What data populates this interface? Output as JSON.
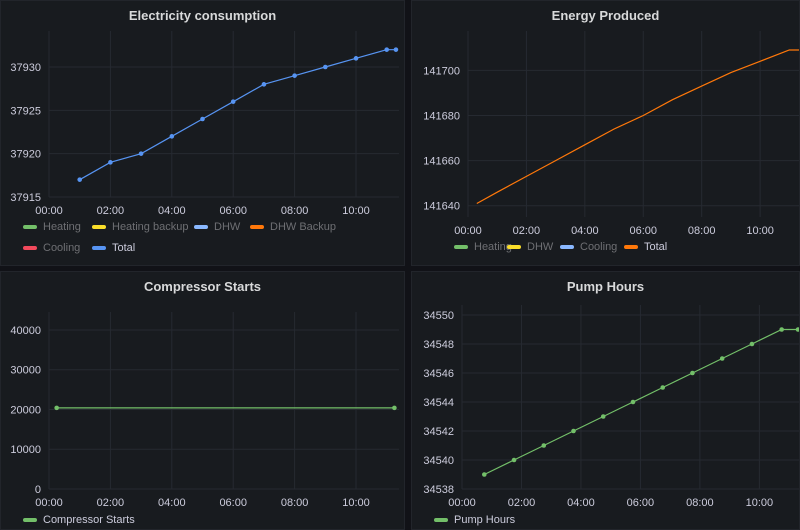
{
  "panels": [
    {
      "title": "Electricity consumption",
      "legend": [
        {
          "label": "Heating",
          "color": "#73bf69",
          "dim": true
        },
        {
          "label": "Heating backup",
          "color": "#fade2a",
          "dim": true
        },
        {
          "label": "DHW",
          "color": "#8ab8ff",
          "dim": true
        },
        {
          "label": "DHW Backup",
          "color": "#ff780a",
          "dim": true
        },
        {
          "label": "Cooling",
          "color": "#f2495c",
          "dim": true
        },
        {
          "label": "Total",
          "color": "#5794f2",
          "dim": false
        }
      ]
    },
    {
      "title": "Energy Produced",
      "legend": [
        {
          "label": "Heating",
          "color": "#73bf69",
          "dim": true
        },
        {
          "label": "DHW",
          "color": "#fade2a",
          "dim": true
        },
        {
          "label": "Cooling",
          "color": "#8ab8ff",
          "dim": true
        },
        {
          "label": "Total",
          "color": "#ff780a",
          "dim": false
        }
      ]
    },
    {
      "title": "Compressor Starts",
      "legend": [
        {
          "label": "Compressor Starts",
          "color": "#73bf69",
          "dim": false
        }
      ]
    },
    {
      "title": "Pump Hours",
      "legend": [
        {
          "label": "Pump Hours",
          "color": "#73bf69",
          "dim": false
        }
      ]
    }
  ],
  "chart_data": [
    {
      "type": "line",
      "title": "Electricity consumption",
      "x_ticks": [
        "00:00",
        "02:00",
        "04:00",
        "06:00",
        "08:00",
        "10:00"
      ],
      "y_ticks": [
        "37915",
        "37920",
        "37925",
        "37930"
      ],
      "ylim": [
        37915,
        37933
      ],
      "xlim_hours": [
        0,
        11.4
      ],
      "series": [
        {
          "name": "Total",
          "color": "#5794f2",
          "points": true,
          "x": [
            1,
            2,
            3,
            4,
            5,
            6,
            7,
            8,
            9,
            10,
            11,
            11.3
          ],
          "y": [
            37917,
            37919,
            37920,
            37922,
            37924,
            37926,
            37928,
            37929,
            37930,
            37931,
            37932,
            37932
          ]
        }
      ]
    },
    {
      "type": "line",
      "title": "Energy Produced",
      "x_ticks": [
        "00:00",
        "02:00",
        "04:00",
        "06:00",
        "08:00",
        "10:00"
      ],
      "y_ticks": [
        "141640",
        "141660",
        "141680",
        "141700"
      ],
      "ylim": [
        141635,
        141713
      ],
      "xlim_hours": [
        0,
        11.4
      ],
      "series": [
        {
          "name": "Total",
          "color": "#ff780a",
          "points": false,
          "x": [
            0.3,
            1,
            2,
            3,
            4,
            5,
            6,
            7,
            8,
            9,
            10,
            11,
            11.4
          ],
          "y": [
            141641,
            141646,
            141653,
            141660,
            141667,
            141674,
            141680,
            141687,
            141693,
            141699,
            141704,
            141709,
            141709
          ]
        }
      ]
    },
    {
      "type": "line",
      "title": "Compressor Starts",
      "x_ticks": [
        "00:00",
        "02:00",
        "04:00",
        "06:00",
        "08:00",
        "10:00"
      ],
      "y_ticks": [
        "0",
        "10000",
        "20000",
        "30000",
        "40000"
      ],
      "ylim": [
        0,
        42000
      ],
      "xlim_hours": [
        0,
        11.4
      ],
      "series": [
        {
          "name": "Compressor Starts",
          "color": "#73bf69",
          "points": true,
          "x": [
            0.25,
            11.25
          ],
          "y": [
            20400,
            20400
          ]
        }
      ]
    },
    {
      "type": "line",
      "title": "Pump Hours",
      "x_ticks": [
        "00:00",
        "02:00",
        "04:00",
        "06:00",
        "08:00",
        "10:00"
      ],
      "y_ticks": [
        "34538",
        "34540",
        "34542",
        "34544",
        "34546",
        "34548",
        "34550"
      ],
      "ylim": [
        34538,
        34550
      ],
      "xlim_hours": [
        0,
        11.4
      ],
      "series": [
        {
          "name": "Pump Hours",
          "color": "#73bf69",
          "points": true,
          "x": [
            0.75,
            1.75,
            2.75,
            3.75,
            4.75,
            5.75,
            6.75,
            7.75,
            8.75,
            9.75,
            10.75,
            11.3
          ],
          "y": [
            34539,
            34540,
            34541,
            34542,
            34543,
            34544,
            34545,
            34546,
            34547,
            34548,
            34549,
            34549
          ]
        }
      ]
    }
  ]
}
